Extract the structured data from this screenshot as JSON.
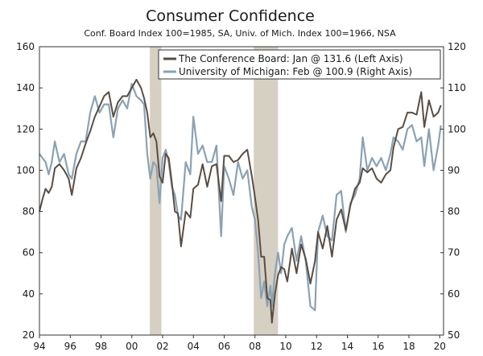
{
  "colors": {
    "conference": "#5a4d43",
    "michigan": "#8aa2b3",
    "recession": "#d6d0c3",
    "axis": "#333333",
    "text": "#1a1a1a"
  },
  "chart_data": {
    "type": "line",
    "title": "Consumer Confidence",
    "subtitle": "Conf. Board Index 100=1985, SA, Univ. of Mich. Index 100=1966, NSA",
    "left_axis": {
      "min": 20,
      "max": 160,
      "ticks": [
        20,
        40,
        60,
        80,
        100,
        120,
        140,
        160
      ]
    },
    "right_axis": {
      "min": 50,
      "max": 120,
      "ticks": [
        50,
        60,
        70,
        80,
        90,
        100,
        110,
        120
      ]
    },
    "x_range": [
      1994,
      2020.25
    ],
    "x_ticks": [
      {
        "year": 1994,
        "label": "94"
      },
      {
        "year": 1996,
        "label": "96"
      },
      {
        "year": 1998,
        "label": "98"
      },
      {
        "year": 2000,
        "label": "00"
      },
      {
        "year": 2002,
        "label": "02"
      },
      {
        "year": 2004,
        "label": "04"
      },
      {
        "year": 2006,
        "label": "06"
      },
      {
        "year": 2008,
        "label": "08"
      },
      {
        "year": 2010,
        "label": "10"
      },
      {
        "year": 2012,
        "label": "12"
      },
      {
        "year": 2014,
        "label": "14"
      },
      {
        "year": 2016,
        "label": "16"
      },
      {
        "year": 2018,
        "label": "18"
      },
      {
        "year": 2020,
        "label": "20"
      }
    ],
    "recessions": [
      {
        "start": 2001.17,
        "end": 2001.92
      },
      {
        "start": 2007.92,
        "end": 2009.5
      }
    ],
    "legend": [
      {
        "series": "conference",
        "label": "The Conference Board: Jan @ 131.6 (Left Axis)"
      },
      {
        "series": "michigan",
        "label": "University of Michigan: Feb @ 100.9 (Right Axis)"
      }
    ],
    "series": [
      {
        "name": "The Conference Board",
        "key": "conference",
        "axis": "left",
        "points": [
          [
            1994.0,
            80
          ],
          [
            1994.2,
            86
          ],
          [
            1994.4,
            91
          ],
          [
            1994.6,
            89
          ],
          [
            1994.8,
            92
          ],
          [
            1995.0,
            101
          ],
          [
            1995.3,
            103
          ],
          [
            1995.6,
            100
          ],
          [
            1995.9,
            96
          ],
          [
            1996.1,
            88
          ],
          [
            1996.4,
            101
          ],
          [
            1996.7,
            106
          ],
          [
            1997.0,
            113
          ],
          [
            1997.3,
            119
          ],
          [
            1997.6,
            126
          ],
          [
            1997.9,
            131
          ],
          [
            1998.2,
            136
          ],
          [
            1998.5,
            138
          ],
          [
            1998.8,
            126
          ],
          [
            1999.1,
            133
          ],
          [
            1999.4,
            136
          ],
          [
            1999.7,
            136
          ],
          [
            2000.0,
            140
          ],
          [
            2000.3,
            144
          ],
          [
            2000.6,
            140
          ],
          [
            2000.8,
            135
          ],
          [
            2001.0,
            128
          ],
          [
            2001.2,
            116
          ],
          [
            2001.4,
            118
          ],
          [
            2001.6,
            114
          ],
          [
            2001.8,
            97
          ],
          [
            2002.0,
            94
          ],
          [
            2002.2,
            108
          ],
          [
            2002.4,
            106
          ],
          [
            2002.6,
            94
          ],
          [
            2002.8,
            80
          ],
          [
            2003.0,
            79
          ],
          [
            2003.2,
            63
          ],
          [
            2003.5,
            80
          ],
          [
            2003.8,
            77
          ],
          [
            2004.0,
            91
          ],
          [
            2004.3,
            93
          ],
          [
            2004.6,
            103
          ],
          [
            2004.9,
            92
          ],
          [
            2005.2,
            102
          ],
          [
            2005.5,
            103
          ],
          [
            2005.8,
            85
          ],
          [
            2006.0,
            107
          ],
          [
            2006.3,
            107
          ],
          [
            2006.6,
            104
          ],
          [
            2006.9,
            105
          ],
          [
            2007.2,
            108
          ],
          [
            2007.5,
            110
          ],
          [
            2007.8,
            97
          ],
          [
            2008.0,
            87
          ],
          [
            2008.2,
            76
          ],
          [
            2008.4,
            58
          ],
          [
            2008.6,
            58
          ],
          [
            2008.8,
            38
          ],
          [
            2009.0,
            37
          ],
          [
            2009.1,
            26
          ],
          [
            2009.3,
            40
          ],
          [
            2009.5,
            49
          ],
          [
            2009.7,
            53
          ],
          [
            2009.9,
            52
          ],
          [
            2010.1,
            46
          ],
          [
            2010.4,
            62
          ],
          [
            2010.7,
            50
          ],
          [
            2011.0,
            64
          ],
          [
            2011.3,
            57
          ],
          [
            2011.6,
            45
          ],
          [
            2011.9,
            56
          ],
          [
            2012.1,
            70
          ],
          [
            2012.4,
            62
          ],
          [
            2012.7,
            73
          ],
          [
            2013.0,
            58
          ],
          [
            2013.3,
            76
          ],
          [
            2013.6,
            81
          ],
          [
            2013.9,
            71
          ],
          [
            2014.2,
            83
          ],
          [
            2014.5,
            91
          ],
          [
            2014.8,
            94
          ],
          [
            2015.0,
            101
          ],
          [
            2015.3,
            99
          ],
          [
            2015.6,
            101
          ],
          [
            2015.9,
            96
          ],
          [
            2016.2,
            94
          ],
          [
            2016.5,
            98
          ],
          [
            2016.8,
            100
          ],
          [
            2017.0,
            111
          ],
          [
            2017.3,
            120
          ],
          [
            2017.6,
            121
          ],
          [
            2017.9,
            128
          ],
          [
            2018.2,
            128
          ],
          [
            2018.5,
            127
          ],
          [
            2018.8,
            138
          ],
          [
            2019.0,
            121
          ],
          [
            2019.3,
            134
          ],
          [
            2019.6,
            126
          ],
          [
            2019.9,
            128
          ],
          [
            2020.08,
            131.6
          ]
        ]
      },
      {
        "name": "University of Michigan",
        "key": "michigan",
        "axis": "right",
        "points": [
          [
            1994.0,
            94
          ],
          [
            1994.2,
            93
          ],
          [
            1994.4,
            92
          ],
          [
            1994.6,
            89
          ],
          [
            1994.8,
            92
          ],
          [
            1995.0,
            97
          ],
          [
            1995.3,
            92
          ],
          [
            1995.6,
            94
          ],
          [
            1995.9,
            89
          ],
          [
            1996.1,
            88
          ],
          [
            1996.4,
            94
          ],
          [
            1996.7,
            97
          ],
          [
            1997.0,
            97
          ],
          [
            1997.3,
            104
          ],
          [
            1997.6,
            108
          ],
          [
            1997.9,
            104
          ],
          [
            1998.2,
            106
          ],
          [
            1998.5,
            106
          ],
          [
            1998.8,
            98
          ],
          [
            1999.1,
            105
          ],
          [
            1999.4,
            107
          ],
          [
            1999.7,
            105
          ],
          [
            2000.0,
            111
          ],
          [
            2000.3,
            108
          ],
          [
            2000.6,
            107
          ],
          [
            2000.8,
            106
          ],
          [
            2001.0,
            94
          ],
          [
            2001.2,
            88
          ],
          [
            2001.4,
            92
          ],
          [
            2001.6,
            91
          ],
          [
            2001.8,
            82
          ],
          [
            2002.0,
            93
          ],
          [
            2002.2,
            95
          ],
          [
            2002.4,
            92
          ],
          [
            2002.6,
            86
          ],
          [
            2002.8,
            84
          ],
          [
            2003.0,
            79
          ],
          [
            2003.2,
            78
          ],
          [
            2003.5,
            92
          ],
          [
            2003.8,
            89
          ],
          [
            2004.0,
            103
          ],
          [
            2004.3,
            94
          ],
          [
            2004.6,
            96
          ],
          [
            2004.9,
            92
          ],
          [
            2005.2,
            92
          ],
          [
            2005.5,
            96
          ],
          [
            2005.8,
            74
          ],
          [
            2006.0,
            91
          ],
          [
            2006.3,
            88
          ],
          [
            2006.6,
            84
          ],
          [
            2006.9,
            92
          ],
          [
            2007.2,
            88
          ],
          [
            2007.5,
            90
          ],
          [
            2007.8,
            81
          ],
          [
            2008.0,
            78
          ],
          [
            2008.2,
            70
          ],
          [
            2008.4,
            59
          ],
          [
            2008.6,
            63
          ],
          [
            2008.8,
            57
          ],
          [
            2009.0,
            62
          ],
          [
            2009.1,
            57
          ],
          [
            2009.3,
            65
          ],
          [
            2009.5,
            70
          ],
          [
            2009.7,
            65
          ],
          [
            2009.9,
            72
          ],
          [
            2010.1,
            74
          ],
          [
            2010.4,
            76
          ],
          [
            2010.7,
            68
          ],
          [
            2011.0,
            74
          ],
          [
            2011.3,
            68
          ],
          [
            2011.6,
            57
          ],
          [
            2011.9,
            56
          ],
          [
            2012.1,
            75
          ],
          [
            2012.4,
            79
          ],
          [
            2012.7,
            74
          ],
          [
            2013.0,
            73
          ],
          [
            2013.3,
            84
          ],
          [
            2013.6,
            85
          ],
          [
            2013.9,
            75
          ],
          [
            2014.2,
            82
          ],
          [
            2014.5,
            84
          ],
          [
            2014.8,
            88
          ],
          [
            2015.0,
            98
          ],
          [
            2015.3,
            90
          ],
          [
            2015.6,
            93
          ],
          [
            2015.9,
            91
          ],
          [
            2016.2,
            93
          ],
          [
            2016.5,
            90
          ],
          [
            2016.8,
            94
          ],
          [
            2017.0,
            98
          ],
          [
            2017.3,
            97
          ],
          [
            2017.6,
            95
          ],
          [
            2017.9,
            100
          ],
          [
            2018.2,
            101
          ],
          [
            2018.5,
            97
          ],
          [
            2018.8,
            98
          ],
          [
            2019.0,
            91
          ],
          [
            2019.3,
            100
          ],
          [
            2019.6,
            90
          ],
          [
            2019.9,
            96
          ],
          [
            2020.08,
            100.9
          ]
        ]
      }
    ]
  }
}
